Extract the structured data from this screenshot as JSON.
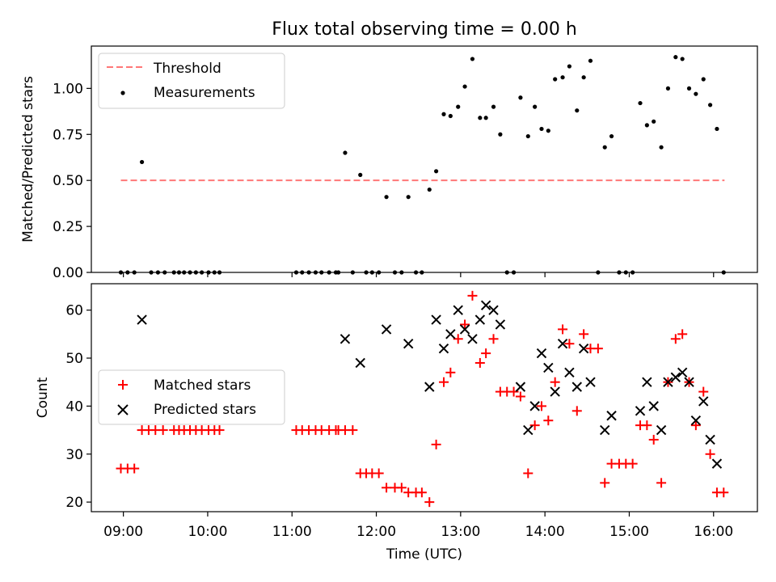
{
  "chart_data": {
    "title": "Flux total observing time = 0.00 h",
    "xlabel": "Time (UTC)",
    "x_ticks": [
      "09:00",
      "10:00",
      "11:00",
      "12:00",
      "13:00",
      "14:00",
      "15:00",
      "16:00"
    ],
    "x_tick_hours": [
      9,
      10,
      11,
      12,
      13,
      14,
      15,
      16
    ],
    "xlim_hours": [
      8.62,
      16.52
    ],
    "panels": [
      {
        "type": "line+scatter",
        "ylabel": "Matched/Predicted stars",
        "ylim": [
          0,
          1.23
        ],
        "y_ticks": [
          "0.00",
          "0.25",
          "0.50",
          "0.75",
          "1.00"
        ],
        "y_tick_values": [
          0,
          0.25,
          0.5,
          0.75,
          1.0
        ],
        "legend_position": "upper-left",
        "series": [
          {
            "name": "Threshold",
            "kind": "dashed-line",
            "color": "#ff7777",
            "x": [
              8.97,
              16.13
            ],
            "y": [
              0.5,
              0.5
            ]
          },
          {
            "name": "Measurements",
            "kind": "points",
            "color": "#000000",
            "x": [
              8.97,
              9.05,
              9.13,
              9.22,
              9.33,
              9.41,
              9.49,
              9.6,
              9.66,
              9.72,
              9.79,
              9.86,
              9.93,
              10.01,
              10.08,
              10.14,
              11.05,
              11.12,
              11.2,
              11.28,
              11.35,
              11.44,
              11.52,
              11.55,
              11.63,
              11.72,
              11.81,
              11.88,
              11.95,
              12.03,
              12.12,
              12.22,
              12.3,
              12.38,
              12.47,
              12.54,
              12.63,
              12.71,
              12.8,
              12.88,
              12.97,
              13.05,
              13.14,
              13.23,
              13.3,
              13.39,
              13.47,
              13.55,
              13.63,
              13.71,
              13.8,
              13.88,
              13.96,
              14.04,
              14.12,
              14.21,
              14.29,
              14.38,
              14.46,
              14.54,
              14.63,
              14.71,
              14.79,
              14.88,
              14.96,
              15.04,
              15.13,
              15.21,
              15.29,
              15.38,
              15.46,
              15.55,
              15.63,
              15.71,
              15.79,
              15.88,
              15.96,
              16.04,
              16.12
            ],
            "y": [
              0,
              0,
              0,
              0.6,
              0,
              0,
              0,
              0,
              0,
              0,
              0,
              0,
              0,
              0,
              0,
              0,
              0,
              0,
              0,
              0,
              0,
              0,
              0,
              0,
              0.65,
              0,
              0.53,
              0,
              0,
              0,
              0.41,
              0,
              0,
              0.41,
              0,
              0,
              0.45,
              0.55,
              0.86,
              0.85,
              0.9,
              1.01,
              1.16,
              0.84,
              0.84,
              0.9,
              0.75,
              0,
              0,
              0.95,
              0.74,
              0.9,
              0.78,
              0.77,
              1.05,
              1.06,
              1.12,
              0.88,
              1.06,
              1.15,
              0,
              0.68,
              0.74,
              0,
              0,
              0,
              0.92,
              0.8,
              0.82,
              0.68,
              1.0,
              1.17,
              1.16,
              1.0,
              0.97,
              1.05,
              0.91,
              0.78,
              0
            ]
          }
        ]
      },
      {
        "type": "scatter",
        "ylabel": "Count",
        "ylim": [
          18,
          65.5
        ],
        "y_ticks": [
          "20",
          "30",
          "40",
          "50",
          "60"
        ],
        "y_tick_values": [
          20,
          30,
          40,
          50,
          60
        ],
        "legend_position": "center-left",
        "series": [
          {
            "name": "Matched stars",
            "marker": "plus",
            "color": "#ff0000",
            "x": [
              8.97,
              9.05,
              9.13,
              9.22,
              9.3,
              9.38,
              9.47,
              9.6,
              9.66,
              9.72,
              9.79,
              9.86,
              9.93,
              10.01,
              10.08,
              10.14,
              11.05,
              11.12,
              11.2,
              11.28,
              11.35,
              11.44,
              11.52,
              11.55,
              11.63,
              11.72,
              11.81,
              11.88,
              11.95,
              12.03,
              12.12,
              12.22,
              12.3,
              12.38,
              12.47,
              12.54,
              12.63,
              12.71,
              12.8,
              12.88,
              12.97,
              13.05,
              13.14,
              13.23,
              13.3,
              13.39,
              13.47,
              13.55,
              13.63,
              13.71,
              13.8,
              13.88,
              13.96,
              14.04,
              14.12,
              14.21,
              14.29,
              14.38,
              14.46,
              14.54,
              14.63,
              14.71,
              14.79,
              14.88,
              14.96,
              15.04,
              15.13,
              15.21,
              15.29,
              15.38,
              15.46,
              15.55,
              15.63,
              15.71,
              15.79,
              15.88,
              15.96,
              16.04,
              16.12
            ],
            "y": [
              27,
              27,
              27,
              35,
              35,
              35,
              35,
              35,
              35,
              35,
              35,
              35,
              35,
              35,
              35,
              35,
              35,
              35,
              35,
              35,
              35,
              35,
              35,
              35,
              35,
              35,
              26,
              26,
              26,
              26,
              23,
              23,
              23,
              22,
              22,
              22,
              20,
              32,
              45,
              47,
              54,
              57,
              63,
              49,
              51,
              54,
              43,
              43,
              43,
              42,
              26,
              36,
              40,
              37,
              45,
              56,
              53,
              39,
              55,
              52,
              52,
              24,
              28,
              28,
              28,
              28,
              36,
              36,
              33,
              24,
              45,
              54,
              55,
              45,
              36,
              43,
              30,
              22,
              22
            ]
          },
          {
            "name": "Predicted stars",
            "marker": "x",
            "color": "#000000",
            "x": [
              9.22,
              11.63,
              11.81,
              12.12,
              12.38,
              12.63,
              12.71,
              12.8,
              12.88,
              12.97,
              13.05,
              13.14,
              13.23,
              13.3,
              13.39,
              13.47,
              13.71,
              13.8,
              13.88,
              13.96,
              14.04,
              14.12,
              14.21,
              14.29,
              14.38,
              14.46,
              14.54,
              14.71,
              14.79,
              15.13,
              15.21,
              15.29,
              15.38,
              15.46,
              15.55,
              15.63,
              15.71,
              15.79,
              15.88,
              15.96,
              16.04
            ],
            "y": [
              58,
              54,
              49,
              56,
              53,
              44,
              58,
              52,
              55,
              60,
              56,
              54,
              58,
              61,
              60,
              57,
              44,
              35,
              40,
              51,
              48,
              43,
              53,
              47,
              44,
              52,
              45,
              35,
              38,
              39,
              45,
              40,
              35,
              45,
              46,
              47,
              45,
              37,
              41,
              33,
              28
            ]
          }
        ]
      }
    ]
  }
}
